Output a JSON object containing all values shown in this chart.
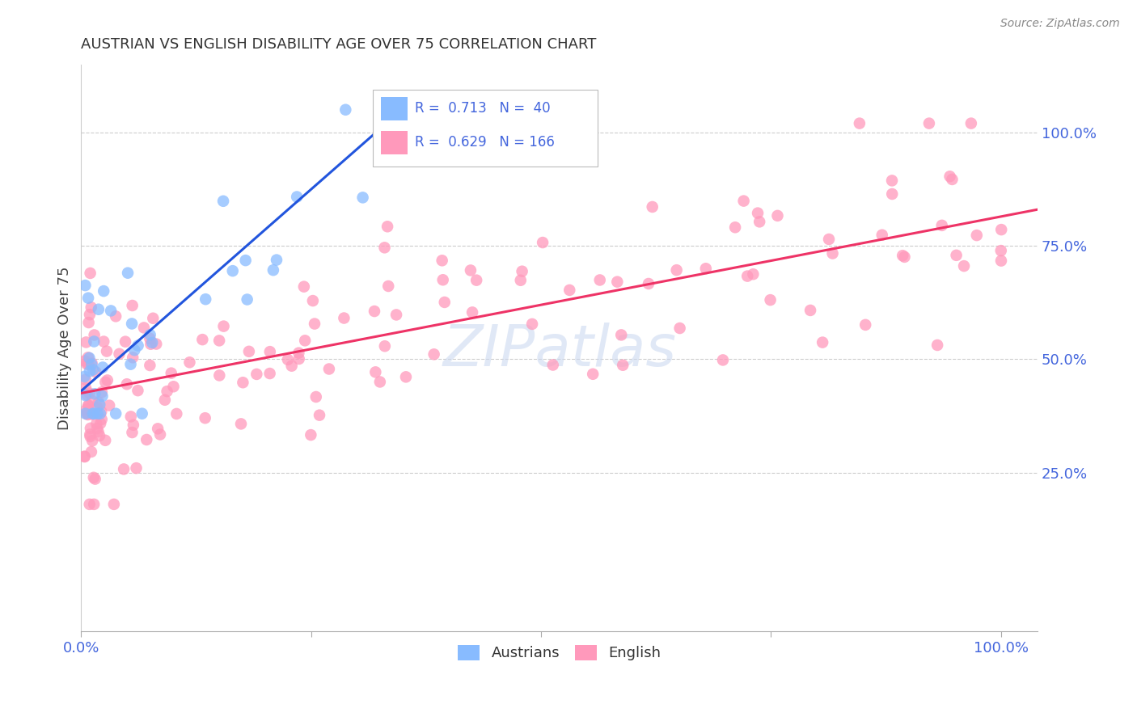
{
  "title": "AUSTRIAN VS ENGLISH DISABILITY AGE OVER 75 CORRELATION CHART",
  "source": "Source: ZipAtlas.com",
  "ylabel": "Disability Age Over 75",
  "austrians_color": "#88bbff",
  "austrians_edge": "#88bbff",
  "english_color": "#ff99bb",
  "english_edge": "#ff99bb",
  "blue_line_color": "#2255dd",
  "pink_line_color": "#ee3366",
  "grid_color": "#cccccc",
  "background_color": "#ffffff",
  "title_color": "#333333",
  "axis_label_color": "#4466dd",
  "watermark_color": "#ccd9f0",
  "xlim": [
    0.0,
    1.04
  ],
  "ylim": [
    -0.1,
    1.15
  ],
  "figsize": [
    14.06,
    8.92
  ],
  "dpi": 100,
  "blue_line_x": [
    0.0,
    0.36
  ],
  "blue_line_y": [
    0.43,
    1.07
  ],
  "pink_line_x": [
    0.0,
    1.04
  ],
  "pink_line_y": [
    0.425,
    0.83
  ]
}
